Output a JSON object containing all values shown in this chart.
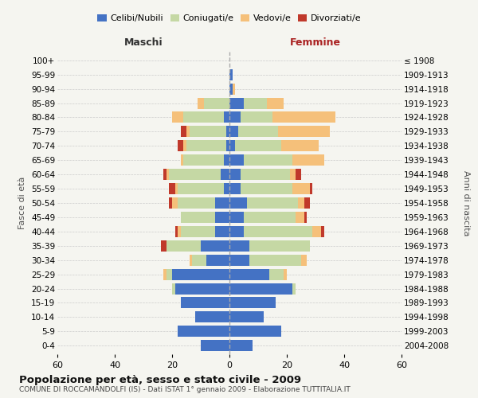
{
  "age_groups": [
    "0-4",
    "5-9",
    "10-14",
    "15-19",
    "20-24",
    "25-29",
    "30-34",
    "35-39",
    "40-44",
    "45-49",
    "50-54",
    "55-59",
    "60-64",
    "65-69",
    "70-74",
    "75-79",
    "80-84",
    "85-89",
    "90-94",
    "95-99",
    "100+"
  ],
  "birth_years": [
    "2004-2008",
    "1999-2003",
    "1994-1998",
    "1989-1993",
    "1984-1988",
    "1979-1983",
    "1974-1978",
    "1969-1973",
    "1964-1968",
    "1959-1963",
    "1954-1958",
    "1949-1953",
    "1944-1948",
    "1939-1943",
    "1934-1938",
    "1929-1933",
    "1924-1928",
    "1919-1923",
    "1914-1918",
    "1909-1913",
    "≤ 1908"
  ],
  "male_celibe": [
    10,
    18,
    12,
    17,
    19,
    20,
    8,
    10,
    5,
    5,
    5,
    2,
    3,
    2,
    1,
    1,
    2,
    0,
    0,
    0,
    0
  ],
  "male_coniugato": [
    0,
    0,
    0,
    0,
    1,
    2,
    5,
    12,
    12,
    12,
    13,
    16,
    18,
    14,
    14,
    13,
    14,
    9,
    0,
    0,
    0
  ],
  "male_vedovo": [
    0,
    0,
    0,
    0,
    0,
    1,
    1,
    0,
    1,
    0,
    2,
    1,
    1,
    1,
    1,
    1,
    4,
    2,
    0,
    0,
    0
  ],
  "male_divorziato": [
    0,
    0,
    0,
    0,
    0,
    0,
    0,
    2,
    1,
    0,
    1,
    2,
    1,
    0,
    2,
    2,
    0,
    0,
    0,
    0,
    0
  ],
  "female_celibe": [
    8,
    18,
    12,
    16,
    22,
    14,
    7,
    7,
    5,
    5,
    6,
    4,
    4,
    5,
    2,
    3,
    4,
    5,
    1,
    1,
    0
  ],
  "female_coniugato": [
    0,
    0,
    0,
    0,
    1,
    5,
    18,
    21,
    24,
    18,
    18,
    18,
    17,
    17,
    16,
    14,
    11,
    8,
    0,
    0,
    0
  ],
  "female_vedovo": [
    0,
    0,
    0,
    0,
    0,
    1,
    2,
    0,
    3,
    3,
    2,
    6,
    2,
    11,
    13,
    18,
    22,
    6,
    1,
    0,
    0
  ],
  "female_divorziata": [
    0,
    0,
    0,
    0,
    0,
    0,
    0,
    0,
    1,
    1,
    2,
    1,
    2,
    0,
    0,
    0,
    0,
    0,
    0,
    0,
    0
  ],
  "colors": {
    "celibe": "#4472C4",
    "coniugato": "#C5D8A4",
    "vedovo": "#F5C07A",
    "divorziato": "#C0392B"
  },
  "title": "Popolazione per età, sesso e stato civile - 2009",
  "subtitle": "COMUNE DI ROCCAMANDOLFI (IS) - Dati ISTAT 1° gennaio 2009 - Elaborazione TUTTITALIA.IT",
  "ylabel_left": "Fasce di età",
  "ylabel_right": "Anni di nascita",
  "xlabel_left": "Maschi",
  "xlabel_right": "Femmine",
  "xlim": 60,
  "background_color": "#f5f5f0",
  "grid_color": "#cccccc"
}
